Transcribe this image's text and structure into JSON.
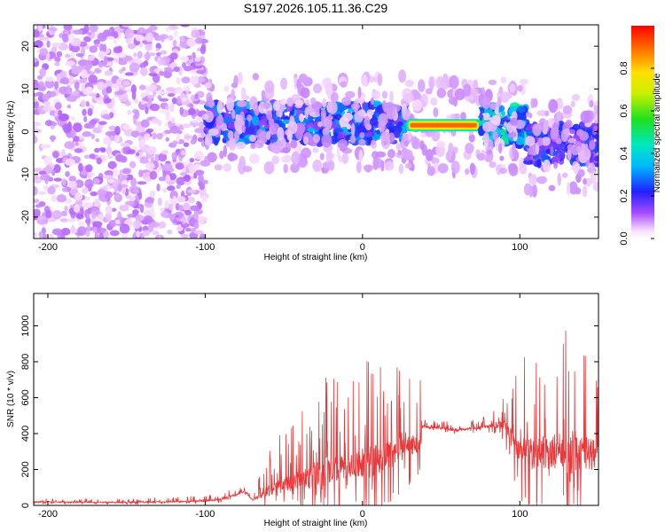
{
  "title": "S197.2026.105.11.36.C29",
  "chart_data": [
    {
      "type": "heatmap",
      "name": "spectrogram",
      "xlabel": "Height of straight line (km)",
      "ylabel": "Frequency (Hz)",
      "xlim": [
        -209,
        150
      ],
      "ylim": [
        -25,
        25
      ],
      "xticks": [
        -200,
        -100,
        0,
        100
      ],
      "xtick_labels": [
        "-200",
        "-100",
        "0",
        "100"
      ],
      "yticks": [
        -20,
        -10,
        0,
        10,
        20
      ],
      "ytick_labels": [
        "-20",
        "-10",
        "0",
        "10",
        "20"
      ],
      "colorbar": {
        "label": "Normalized spectral amplitude",
        "range": [
          0,
          1
        ],
        "ticks": [
          0.0,
          0.2,
          0.4,
          0.6,
          0.8
        ],
        "tick_labels": [
          "0.0",
          "0.2",
          "0.4",
          "0.6",
          "0.8"
        ]
      },
      "regions": [
        {
          "x": [
            -209,
            -100
          ],
          "description": "broadband noise, low amplitude",
          "amplitude": 0.05
        },
        {
          "x": [
            -100,
            28
          ],
          "freq_center": 2,
          "amplitude": 0.25
        },
        {
          "x": [
            28,
            75
          ],
          "freq_center": 1.5,
          "amplitude": 0.9
        },
        {
          "x": [
            75,
            105
          ],
          "freq_center": 1.5,
          "amplitude": 0.35
        },
        {
          "x": [
            105,
            150
          ],
          "freq_center": -3,
          "amplitude": 0.2
        }
      ]
    },
    {
      "type": "line",
      "name": "snr",
      "xlabel": "Height of straight line (km)",
      "ylabel": "SNR (10 * v/v)",
      "xlim": [
        -209,
        150
      ],
      "ylim": [
        0,
        1180
      ],
      "xticks": [
        -200,
        -100,
        0,
        100
      ],
      "xtick_labels": [
        "-200",
        "-100",
        "0",
        "100"
      ],
      "yticks": [
        0,
        200,
        400,
        600,
        800,
        1000
      ],
      "ytick_labels": [
        "0",
        "200",
        "400",
        "600",
        "800",
        "1000"
      ],
      "series": [
        {
          "name": "SNR",
          "color": "#e8383a",
          "x": [
            -209,
            -180,
            -150,
            -120,
            -100,
            -90,
            -80,
            -75,
            -70,
            -60,
            -50,
            -40,
            -30,
            -20,
            -10,
            0,
            10,
            20,
            30,
            37,
            38,
            50,
            60,
            70,
            80,
            90,
            100,
            110,
            120,
            125,
            130,
            135,
            140,
            145,
            150
          ],
          "baseline": [
            20,
            18,
            18,
            20,
            25,
            35,
            60,
            80,
            30,
            80,
            110,
            140,
            170,
            190,
            210,
            230,
            260,
            290,
            330,
            340,
            440,
            430,
            420,
            430,
            440,
            450,
            300,
            280,
            300,
            320,
            290,
            300,
            280,
            290,
            300
          ],
          "peak": [
            40,
            38,
            40,
            45,
            60,
            70,
            100,
            110,
            60,
            300,
            450,
            500,
            680,
            750,
            600,
            850,
            820,
            800,
            750,
            700,
            480,
            470,
            470,
            480,
            500,
            640,
            820,
            900,
            960,
            850,
            1010,
            1180,
            950,
            900,
            830
          ]
        }
      ]
    }
  ]
}
